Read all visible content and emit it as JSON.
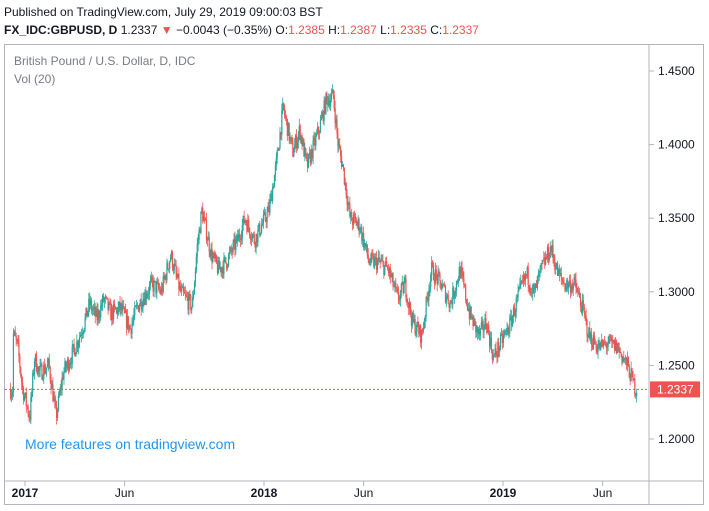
{
  "header": {
    "published": "Published on TradingView.com, July 29, 2019 09:00:03 BST",
    "symbol": "FX_IDC:GBPUSD, D",
    "last": "1.2337",
    "change_arrow": "▼",
    "change": "−0.0043 (−0.35%)",
    "o_label": "O:",
    "o_value": "1.2385",
    "h_label": "H:",
    "h_value": "1.2387",
    "l_label": "L:",
    "l_value": "1.2335",
    "c_label": "C:",
    "c_value": "1.2337"
  },
  "legend": {
    "title": "British Pound / U.S. Dollar, D, IDC",
    "indicator": "Vol (20)"
  },
  "watermark": "More features on tradingview.com",
  "price_label": "1.2337",
  "colors": {
    "up": "#26a69a",
    "down": "#ef5350",
    "watermark": "#2196f3",
    "axis_text": "#131722"
  },
  "chart_data": {
    "type": "candlestick",
    "title": "British Pound / U.S. Dollar, D, IDC",
    "ylim": [
      1.18,
      1.465
    ],
    "y_ticks": [
      "1.2000",
      "1.2500",
      "1.3000",
      "1.3500",
      "1.4000",
      "1.4500"
    ],
    "x_ticks": [
      {
        "label": "2017",
        "bold": true,
        "t": 0.0
      },
      {
        "label": "Jun",
        "bold": false,
        "t": 0.4167
      },
      {
        "label": "2018",
        "bold": true,
        "t": 1.0
      },
      {
        "label": "Jun",
        "bold": false,
        "t": 1.4167
      },
      {
        "label": "2019",
        "bold": true,
        "t": 2.0
      },
      {
        "label": "Jun",
        "bold": false,
        "t": 2.4167
      }
    ],
    "last_price": 1.2337,
    "x_range_years": [
      -0.06,
      2.56
    ],
    "price_path": [
      {
        "t": -0.05,
        "p": 1.272
      },
      {
        "t": -0.03,
        "p": 1.262
      },
      {
        "t": -0.01,
        "p": 1.234
      },
      {
        "t": 0.02,
        "p": 1.215
      },
      {
        "t": 0.04,
        "p": 1.255
      },
      {
        "t": 0.06,
        "p": 1.245
      },
      {
        "t": 0.1,
        "p": 1.25
      },
      {
        "t": 0.13,
        "p": 1.215
      },
      {
        "t": 0.16,
        "p": 1.245
      },
      {
        "t": 0.19,
        "p": 1.255
      },
      {
        "t": 0.21,
        "p": 1.262
      },
      {
        "t": 0.25,
        "p": 1.28
      },
      {
        "t": 0.27,
        "p": 1.292
      },
      {
        "t": 0.3,
        "p": 1.282
      },
      {
        "t": 0.33,
        "p": 1.295
      },
      {
        "t": 0.36,
        "p": 1.285
      },
      {
        "t": 0.4,
        "p": 1.289
      },
      {
        "t": 0.44,
        "p": 1.275
      },
      {
        "t": 0.47,
        "p": 1.29
      },
      {
        "t": 0.53,
        "p": 1.305
      },
      {
        "t": 0.57,
        "p": 1.3
      },
      {
        "t": 0.61,
        "p": 1.325
      },
      {
        "t": 0.65,
        "p": 1.3
      },
      {
        "t": 0.7,
        "p": 1.29
      },
      {
        "t": 0.72,
        "p": 1.33
      },
      {
        "t": 0.74,
        "p": 1.355
      },
      {
        "t": 0.78,
        "p": 1.325
      },
      {
        "t": 0.81,
        "p": 1.315
      },
      {
        "t": 0.84,
        "p": 1.32
      },
      {
        "t": 0.89,
        "p": 1.335
      },
      {
        "t": 0.92,
        "p": 1.35
      },
      {
        "t": 0.96,
        "p": 1.335
      },
      {
        "t": 1.02,
        "p": 1.355
      },
      {
        "t": 1.05,
        "p": 1.385
      },
      {
        "t": 1.08,
        "p": 1.425
      },
      {
        "t": 1.12,
        "p": 1.395
      },
      {
        "t": 1.15,
        "p": 1.41
      },
      {
        "t": 1.18,
        "p": 1.385
      },
      {
        "t": 1.21,
        "p": 1.4
      },
      {
        "t": 1.23,
        "p": 1.41
      },
      {
        "t": 1.26,
        "p": 1.43
      },
      {
        "t": 1.29,
        "p": 1.433
      },
      {
        "t": 1.31,
        "p": 1.4
      },
      {
        "t": 1.33,
        "p": 1.385
      },
      {
        "t": 1.36,
        "p": 1.35
      },
      {
        "t": 1.4,
        "p": 1.345
      },
      {
        "t": 1.44,
        "p": 1.32
      },
      {
        "t": 1.48,
        "p": 1.32
      },
      {
        "t": 1.52,
        "p": 1.315
      },
      {
        "t": 1.56,
        "p": 1.295
      },
      {
        "t": 1.59,
        "p": 1.305
      },
      {
        "t": 1.62,
        "p": 1.28
      },
      {
        "t": 1.66,
        "p": 1.27
      },
      {
        "t": 1.7,
        "p": 1.315
      },
      {
        "t": 1.74,
        "p": 1.305
      },
      {
        "t": 1.78,
        "p": 1.292
      },
      {
        "t": 1.82,
        "p": 1.315
      },
      {
        "t": 1.86,
        "p": 1.285
      },
      {
        "t": 1.9,
        "p": 1.27
      },
      {
        "t": 1.93,
        "p": 1.28
      },
      {
        "t": 1.96,
        "p": 1.255
      },
      {
        "t": 1.99,
        "p": 1.265
      },
      {
        "t": 2.03,
        "p": 1.278
      },
      {
        "t": 2.07,
        "p": 1.3
      },
      {
        "t": 2.1,
        "p": 1.312
      },
      {
        "t": 2.13,
        "p": 1.298
      },
      {
        "t": 2.16,
        "p": 1.315
      },
      {
        "t": 2.2,
        "p": 1.33
      },
      {
        "t": 2.23,
        "p": 1.312
      },
      {
        "t": 2.26,
        "p": 1.305
      },
      {
        "t": 2.3,
        "p": 1.305
      },
      {
        "t": 2.33,
        "p": 1.29
      },
      {
        "t": 2.36,
        "p": 1.27
      },
      {
        "t": 2.4,
        "p": 1.262
      },
      {
        "t": 2.44,
        "p": 1.265
      },
      {
        "t": 2.48,
        "p": 1.262
      },
      {
        "t": 2.52,
        "p": 1.25
      },
      {
        "t": 2.555,
        "p": 1.2337
      }
    ]
  }
}
